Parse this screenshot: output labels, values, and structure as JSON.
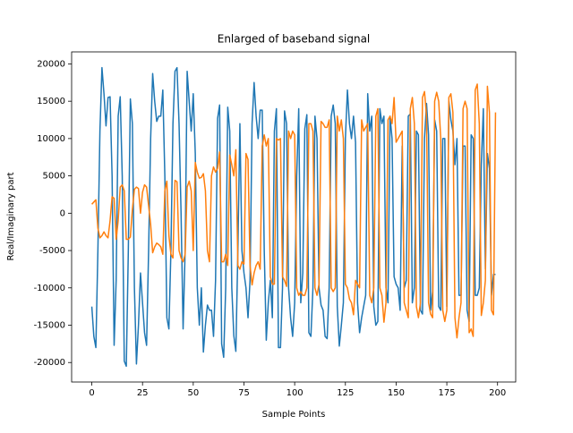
{
  "chart_data": {
    "type": "line",
    "title": "Enlarged of baseband signal",
    "x_label": "Sample Points",
    "y_label": "Real/Imaginary part",
    "x": [
      0,
      1,
      2,
      3,
      4,
      5,
      6,
      7,
      8,
      9,
      10,
      11,
      12,
      13,
      14,
      15,
      16,
      17,
      18,
      19,
      20,
      21,
      22,
      23,
      24,
      25,
      26,
      27,
      28,
      29,
      30,
      31,
      32,
      33,
      34,
      35,
      36,
      37,
      38,
      39,
      40,
      41,
      42,
      43,
      44,
      45,
      46,
      47,
      48,
      49,
      50,
      51,
      52,
      53,
      54,
      55,
      56,
      57,
      58,
      59,
      60,
      61,
      62,
      63,
      64,
      65,
      66,
      67,
      68,
      69,
      70,
      71,
      72,
      73,
      74,
      75,
      76,
      77,
      78,
      79,
      80,
      81,
      82,
      83,
      84,
      85,
      86,
      87,
      88,
      89,
      90,
      91,
      92,
      93,
      94,
      95,
      96,
      97,
      98,
      99,
      100,
      101,
      102,
      103,
      104,
      105,
      106,
      107,
      108,
      109,
      110,
      111,
      112,
      113,
      114,
      115,
      116,
      117,
      118,
      119,
      120,
      121,
      122,
      123,
      124,
      125,
      126,
      127,
      128,
      129,
      130,
      131,
      132,
      133,
      134,
      135,
      136,
      137,
      138,
      139,
      140,
      141,
      142,
      143,
      144,
      145,
      146,
      147,
      148,
      149,
      150,
      151,
      152,
      153,
      154,
      155,
      156,
      157,
      158,
      159,
      160,
      161,
      162,
      163,
      164,
      165,
      166,
      167,
      168,
      169,
      170,
      171,
      172,
      173,
      174,
      175,
      176,
      177,
      178,
      179,
      180,
      181,
      182,
      183,
      184,
      185,
      186,
      187,
      188,
      189,
      190,
      191,
      192,
      193,
      194,
      195,
      196,
      197,
      198,
      199
    ],
    "series": [
      {
        "color": "#1f77b4",
        "values": [
          -12500,
          -16500,
          -18000,
          -5000,
          11000,
          19500,
          16000,
          11700,
          15500,
          15600,
          5000,
          -17700,
          -9000,
          13000,
          15600,
          5000,
          -19800,
          -20500,
          -5000,
          15300,
          12000,
          -10000,
          -20200,
          -15000,
          -8000,
          -12000,
          -16000,
          -17700,
          -5000,
          10000,
          18700,
          15000,
          12300,
          13000,
          13000,
          16500,
          5000,
          -14000,
          -15500,
          -5000,
          12000,
          19000,
          19500,
          12000,
          0,
          -15500,
          -5000,
          19000,
          15000,
          11000,
          16000,
          8000,
          -10000,
          -15000,
          -10000,
          -18600,
          -15000,
          -12300,
          -13000,
          -13000,
          -16500,
          -9000,
          12700,
          14500,
          -17500,
          -19300,
          -10000,
          14200,
          11000,
          -10000,
          -16400,
          -18500,
          -5000,
          12000,
          -5000,
          -8000,
          -10000,
          -14000,
          -9000,
          12000,
          17500,
          13000,
          10000,
          13800,
          13800,
          -5000,
          -17000,
          -12000,
          -9000,
          -14000,
          11000,
          14000,
          -18000,
          -18000,
          -10000,
          13700,
          12000,
          -10000,
          -14000,
          -16500,
          -12000,
          5000,
          14000,
          -12000,
          -8000,
          11300,
          13200,
          -16000,
          -16500,
          -10000,
          13000,
          10000,
          -10000,
          -12300,
          -13000,
          -16500,
          -16800,
          -10000,
          13000,
          14500,
          12000,
          -12500,
          -17800,
          -15000,
          -12000,
          10000,
          16500,
          12000,
          10000,
          13000,
          9500,
          -12000,
          -16000,
          -14000,
          -12500,
          -11000,
          16000,
          11000,
          13000,
          -12500,
          -15000,
          -14500,
          14000,
          12000,
          13000,
          -10000,
          -12000,
          13000,
          10000,
          -8500,
          -9500,
          -10000,
          -13000,
          9000,
          -10000,
          -9000,
          13000,
          13300,
          -12000,
          -10000,
          11000,
          10500,
          -13000,
          -13500,
          10000,
          14700,
          10500,
          -13000,
          -10500,
          12500,
          11000,
          -12500,
          -13000,
          10000,
          10000,
          -12500,
          15000,
          12500,
          11000,
          6500,
          10000,
          -11000,
          -11000,
          9000,
          9000,
          -13000,
          -14500,
          10500,
          10000,
          -11000,
          -11000,
          -10000,
          6500,
          14000,
          -7500,
          8000,
          6000,
          -11000,
          -8200,
          -8200
        ]
      },
      {
        "color": "#ff7f0e",
        "values": [
          1200,
          1500,
          1800,
          -2000,
          -3300,
          -3000,
          -2500,
          -3000,
          -3300,
          -1000,
          2200,
          2000,
          -3500,
          -1000,
          3500,
          3800,
          3000,
          -3500,
          -3500,
          -3200,
          500,
          3200,
          3500,
          3300,
          0,
          2800,
          3800,
          3500,
          1000,
          -1500,
          -5300,
          -4500,
          -4000,
          -4200,
          -4500,
          -5500,
          3000,
          4300,
          -3000,
          -5500,
          -6000,
          4400,
          4200,
          -5000,
          -6000,
          -6500,
          -5500,
          3500,
          4300,
          3000,
          -5000,
          6800,
          5500,
          4700,
          4800,
          5300,
          3000,
          -5000,
          -6500,
          5000,
          6200,
          5500,
          6000,
          8200,
          -6500,
          -6500,
          -5500,
          -7000,
          7800,
          6500,
          5000,
          8500,
          -7000,
          -7500,
          -6500,
          -6800,
          8000,
          7200,
          -7000,
          -9600,
          -8000,
          -7000,
          -6500,
          -7500,
          9000,
          10500,
          9000,
          10000,
          -8500,
          -9500,
          -9500,
          10000,
          9800,
          10000,
          -8500,
          -9000,
          -9800,
          11000,
          10000,
          11000,
          10500,
          -10000,
          -11000,
          -10500,
          -11000,
          -11000,
          -10000,
          12000,
          12000,
          11000,
          -10000,
          -11000,
          -9500,
          12300,
          12000,
          11500,
          11500,
          12500,
          -10000,
          -10500,
          -10000,
          13000,
          11000,
          12500,
          10000,
          -9500,
          -10000,
          -11500,
          -12000,
          -13600,
          -9000,
          -9500,
          -10000,
          12500,
          11000,
          11500,
          12000,
          -11000,
          -12000,
          -10000,
          13000,
          14000,
          -10000,
          -11000,
          -14600,
          -12000,
          12500,
          13000,
          12000,
          15500,
          9500,
          10000,
          10500,
          11000,
          -12000,
          -13000,
          -14000,
          14000,
          15500,
          12000,
          -12500,
          -14000,
          -12000,
          15500,
          16300,
          13000,
          -12000,
          -13500,
          -14000,
          15000,
          16200,
          15000,
          10000,
          -13000,
          -14500,
          -13000,
          15500,
          16000,
          13500,
          -14000,
          -16700,
          -14000,
          -12000,
          14000,
          15000,
          14000,
          -16000,
          -15500,
          -16500,
          16500,
          17300,
          12000,
          -13700,
          -12000,
          -9000,
          17000,
          13500,
          -13000,
          -13600,
          13500
        ]
      }
    ],
    "xlim": [
      -9.95,
      208.95
    ],
    "xticks": [
      0,
      25,
      50,
      75,
      100,
      125,
      150,
      175,
      200
    ],
    "ylim": [
      -22610,
      21610
    ],
    "yticks": [
      -20000,
      -15000,
      -10000,
      -5000,
      0,
      5000,
      10000,
      15000,
      20000
    ],
    "grid": false
  }
}
